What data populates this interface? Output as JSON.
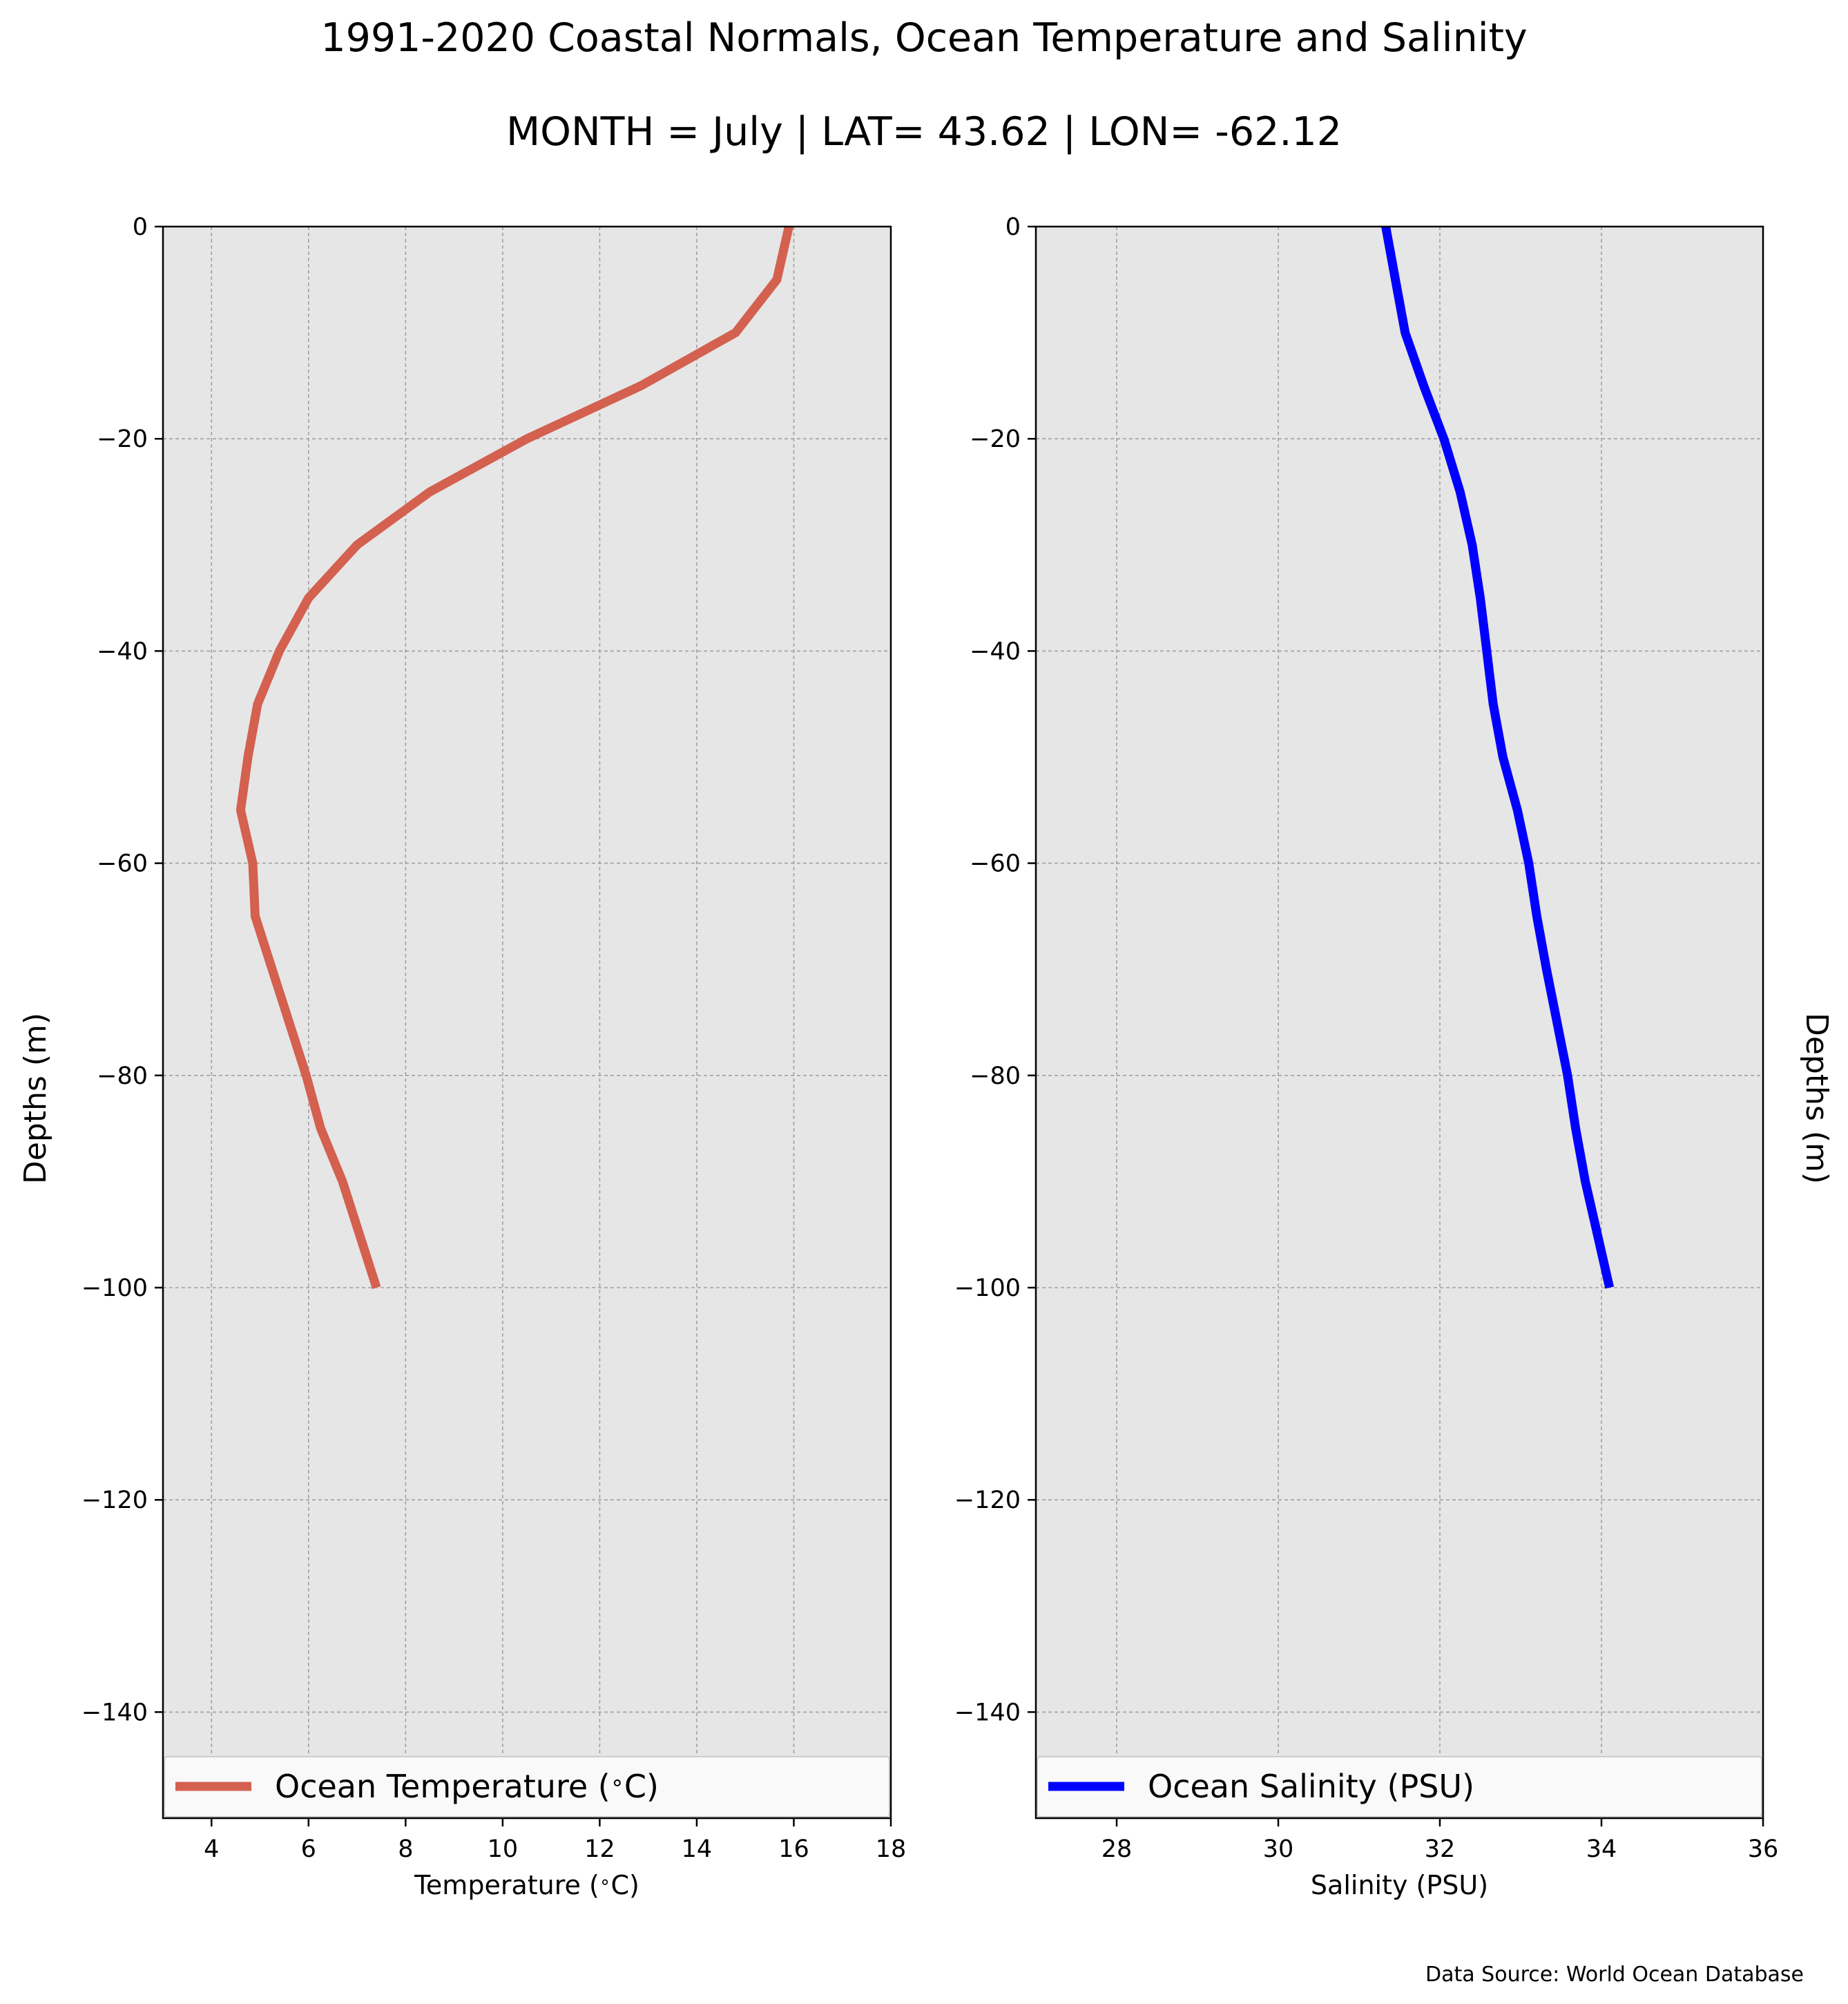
{
  "title": "1991-2020 Coastal Normals, Ocean Temperature and Salinity",
  "subtitle": "MONTH = July | LAT= 43.62 | LON= -62.12",
  "ylabel_left": "Depths (m)",
  "ylabel_right": "Depths (m)",
  "source": "Data Source: World Ocean Database",
  "colors": {
    "background": "#ffffff",
    "plot_bg": "#e6e6e6",
    "grid": "#a0a0a0",
    "temperature": "#d4604f",
    "salinity": "#0000ff"
  },
  "chart_data": [
    {
      "type": "line",
      "xlabel": "Temperature ($^\\circ$C)",
      "ylabel": "Depths (m)",
      "xlim": [
        3,
        18
      ],
      "ylim": [
        -150,
        0
      ],
      "xticks": [
        4,
        6,
        8,
        10,
        12,
        14,
        16,
        18
      ],
      "xtick_labels": [
        "4",
        "6",
        "8",
        "10",
        "12",
        "14",
        "16",
        "18"
      ],
      "yticks": [
        0,
        -20,
        -40,
        -60,
        -80,
        -100,
        -120,
        -140
      ],
      "ytick_labels": [
        "0",
        "−20",
        "−40",
        "−60",
        "−80",
        "−100",
        "−120",
        "−140"
      ],
      "grid": true,
      "legend_position": "bottom",
      "series": [
        {
          "name": "Ocean Temperature ($^\\circ$C)",
          "color": "#d4604f",
          "x": [
            15.9,
            15.65,
            14.8,
            12.85,
            10.5,
            8.5,
            7.0,
            6.0,
            5.4,
            4.95,
            4.75,
            4.6,
            4.85,
            4.9,
            5.25,
            5.6,
            5.95,
            6.25,
            6.7,
            7.05,
            7.4
          ],
          "y": [
            0,
            -5,
            -10,
            -15,
            -20,
            -25,
            -30,
            -35,
            -40,
            -45,
            -50,
            -55,
            -60,
            -65,
            -70,
            -75,
            -80,
            -85,
            -90,
            -95,
            -100
          ]
        }
      ]
    },
    {
      "type": "line",
      "xlabel": "Salinity (PSU)",
      "ylabel": "Depths (m)",
      "xlim": [
        27,
        36
      ],
      "ylim": [
        -150,
        0
      ],
      "xticks": [
        28,
        30,
        32,
        34,
        36
      ],
      "xtick_labels": [
        "28",
        "30",
        "32",
        "34",
        "36"
      ],
      "yticks": [
        0,
        -20,
        -40,
        -60,
        -80,
        -100,
        -120,
        -140
      ],
      "ytick_labels": [
        "0",
        "−20",
        "−40",
        "−60",
        "−80",
        "−100",
        "−120",
        "−140"
      ],
      "grid": true,
      "legend_position": "bottom",
      "series": [
        {
          "name": "Ocean Salinity (PSU)",
          "color": "#0000ff",
          "x": [
            31.33,
            31.45,
            31.57,
            31.8,
            32.05,
            32.25,
            32.4,
            32.5,
            32.58,
            32.66,
            32.78,
            32.96,
            33.1,
            33.2,
            33.32,
            33.45,
            33.58,
            33.68,
            33.8,
            33.95,
            34.1
          ],
          "y": [
            0,
            -5,
            -10,
            -15,
            -20,
            -25,
            -30,
            -35,
            -40,
            -45,
            -50,
            -55,
            -60,
            -65,
            -70,
            -75,
            -80,
            -85,
            -90,
            -95,
            -100
          ]
        }
      ]
    }
  ]
}
